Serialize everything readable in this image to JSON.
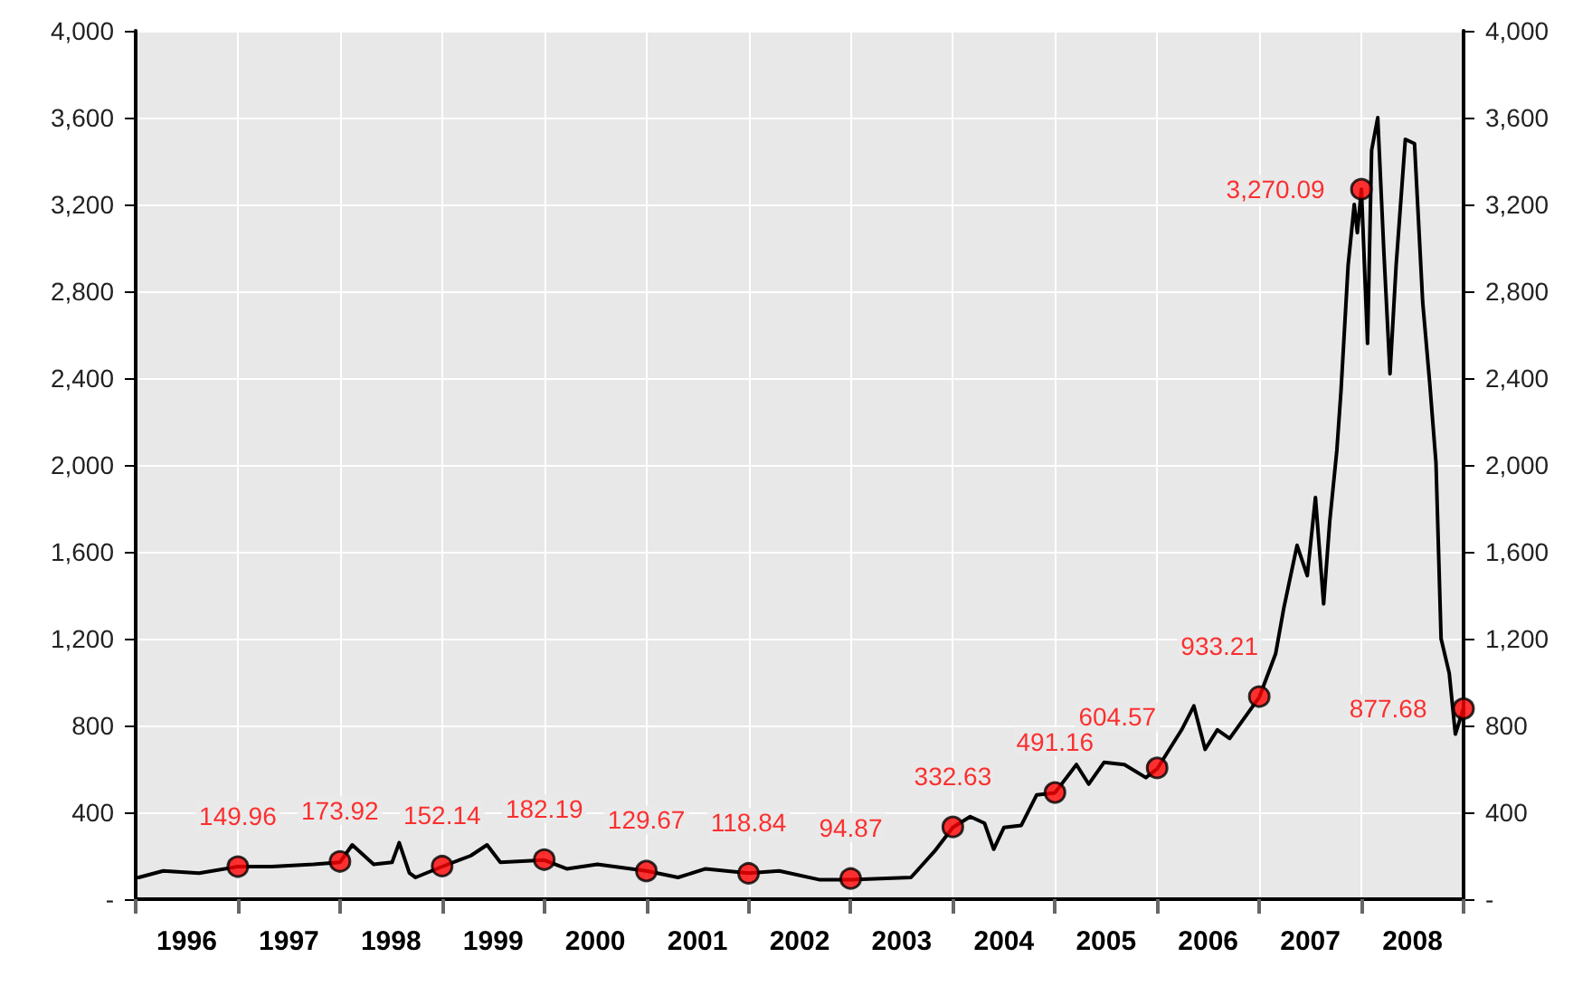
{
  "chart_data": {
    "type": "line",
    "xlim": [
      1996,
      2009
    ],
    "xticks": [
      {
        "value": 1996,
        "label": null
      },
      {
        "value": 1997,
        "label": null
      },
      {
        "value": 1998,
        "label": null
      },
      {
        "value": 1999,
        "label": null
      },
      {
        "value": 2000,
        "label": null
      },
      {
        "value": 2001,
        "label": null
      },
      {
        "value": 2002,
        "label": null
      },
      {
        "value": 2003,
        "label": null
      },
      {
        "value": 2004,
        "label": null
      },
      {
        "value": 2005,
        "label": null
      },
      {
        "value": 2006,
        "label": null
      },
      {
        "value": 2007,
        "label": null
      },
      {
        "value": 2008,
        "label": null
      },
      {
        "value": 2009,
        "label": null
      },
      {
        "value": 1996.5,
        "label": "1996"
      },
      {
        "value": 1997.5,
        "label": "1997"
      },
      {
        "value": 1998.5,
        "label": "1998"
      },
      {
        "value": 1999.5,
        "label": "1999"
      },
      {
        "value": 2000.5,
        "label": "2000"
      },
      {
        "value": 2001.5,
        "label": "2001"
      },
      {
        "value": 2002.5,
        "label": "2002"
      },
      {
        "value": 2003.5,
        "label": "2003"
      },
      {
        "value": 2004.5,
        "label": "2004"
      },
      {
        "value": 2005.5,
        "label": "2005"
      },
      {
        "value": 2006.5,
        "label": "2006"
      },
      {
        "value": 2007.5,
        "label": "2007"
      },
      {
        "value": 2008.5,
        "label": "2008"
      }
    ],
    "ylim": [
      0,
      4000
    ],
    "yticks": [
      {
        "value": 0,
        "label": "-"
      },
      {
        "value": 400,
        "label": "400"
      },
      {
        "value": 800,
        "label": "800"
      },
      {
        "value": 1200,
        "label": "1,200"
      },
      {
        "value": 1600,
        "label": "1,600"
      },
      {
        "value": 2000,
        "label": "2,000"
      },
      {
        "value": 2400,
        "label": "2,400"
      },
      {
        "value": 2800,
        "label": "2,800"
      },
      {
        "value": 3200,
        "label": "3,200"
      },
      {
        "value": 3600,
        "label": "3,600"
      },
      {
        "value": 4000,
        "label": "4,000"
      }
    ],
    "y2lim": [
      0,
      4000
    ],
    "y2ticks": [
      {
        "value": 0,
        "label": "-"
      },
      {
        "value": 400,
        "label": "400"
      },
      {
        "value": 800,
        "label": "800"
      },
      {
        "value": 1200,
        "label": "1,200"
      },
      {
        "value": 1600,
        "label": "1,600"
      },
      {
        "value": 2000,
        "label": "2,000"
      },
      {
        "value": 2400,
        "label": "2,400"
      },
      {
        "value": 2800,
        "label": "2,800"
      },
      {
        "value": 3200,
        "label": "3,200"
      },
      {
        "value": 3600,
        "label": "3,600"
      },
      {
        "value": 4000,
        "label": "4,000"
      }
    ],
    "grid": true,
    "series": [
      {
        "color": "#000000",
        "marker": "none",
        "line_style": "solid",
        "x": [
          1996.03,
          1996.27,
          1996.62,
          1997.0,
          1997.33,
          1997.74,
          1998.0,
          1998.12,
          1998.33,
          1998.51,
          1998.58,
          1998.68,
          1998.74,
          1999.0,
          1999.28,
          1999.44,
          1999.57,
          2000.0,
          2000.22,
          2000.52,
          2001.0,
          2001.31,
          2001.58,
          2002.0,
          2002.3,
          2002.69,
          2003.0,
          2003.59,
          2003.82,
          2004.0,
          2004.17,
          2004.31,
          2004.4,
          2004.5,
          2004.67,
          2004.82,
          2005.0,
          2005.21,
          2005.33,
          2005.48,
          2005.68,
          2005.89,
          2006.0,
          2006.24,
          2006.36,
          2006.47,
          2006.59,
          2006.71,
          2007.0,
          2007.16,
          2007.24,
          2007.37,
          2007.47,
          2007.55,
          2007.63,
          2007.69,
          2007.76,
          2007.8,
          2007.87,
          2007.93,
          2007.96,
          2008.0,
          2008.06,
          2008.1,
          2008.16,
          2008.22,
          2008.28,
          2008.34,
          2008.43,
          2008.52,
          2008.6,
          2008.67,
          2008.73,
          2008.78,
          2008.86,
          2008.92,
          2009.0
        ],
        "values": [
          100,
          130,
          120,
          150,
          150,
          160,
          170,
          250,
          160,
          170,
          260,
          120,
          100,
          150,
          200,
          250,
          170,
          180,
          140,
          160,
          130,
          100,
          140,
          120,
          130,
          90,
          90,
          100,
          220,
          330,
          380,
          350,
          230,
          330,
          340,
          480,
          490,
          620,
          530,
          630,
          620,
          560,
          600,
          780,
          890,
          690,
          780,
          740,
          930,
          1130,
          1340,
          1630,
          1490,
          1850,
          1360,
          1740,
          2070,
          2340,
          2920,
          3200,
          3070,
          3270,
          2560,
          3450,
          3600,
          2980,
          2420,
          2920,
          3500,
          3480,
          2750,
          2370,
          2010,
          1200,
          1040,
          760,
          880
        ]
      },
      {
        "type": "scatter",
        "color": "#ff0000",
        "marker": "circle",
        "x": [
          1997,
          1998,
          1999,
          2000,
          2001,
          2002,
          2003,
          2004,
          2005,
          2006,
          2007,
          2008,
          2009
        ],
        "values": [
          149.96,
          173.92,
          152.14,
          182.19,
          129.67,
          118.84,
          94.87,
          332.63,
          491.16,
          604.57,
          933.21,
          3270.09,
          877.68
        ],
        "value_labels": [
          "149.96",
          "173.92",
          "152.14",
          "182.19",
          "129.67",
          "118.84",
          "94.87",
          "332.63",
          "491.16",
          "604.57",
          "933.21",
          "3,270.09",
          "877.68"
        ]
      }
    ]
  }
}
